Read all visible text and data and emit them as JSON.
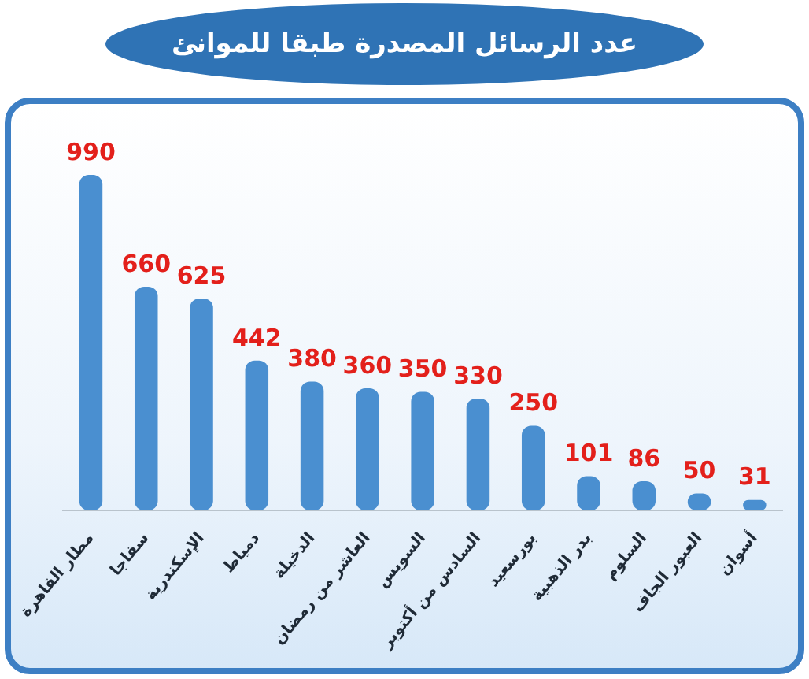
{
  "chart_data": {
    "type": "bar",
    "title": "عدد الرسائل المصدرة طبقا للموانئ",
    "categories": [
      "مطار القاهرة",
      "سفاجا",
      "الإسكندرية",
      "دمياط",
      "الدخيلة",
      "العاشر من رمضان",
      "السويس",
      "السادس من أكتوبر",
      "بورسعيد",
      "بدر الذهبية",
      "السلوم",
      "العبور الجاف",
      "أسوان"
    ],
    "values": [
      990,
      660,
      625,
      442,
      380,
      360,
      350,
      330,
      250,
      101,
      86,
      50,
      31
    ],
    "color": "#4a8fd0",
    "data_labels": true
  }
}
